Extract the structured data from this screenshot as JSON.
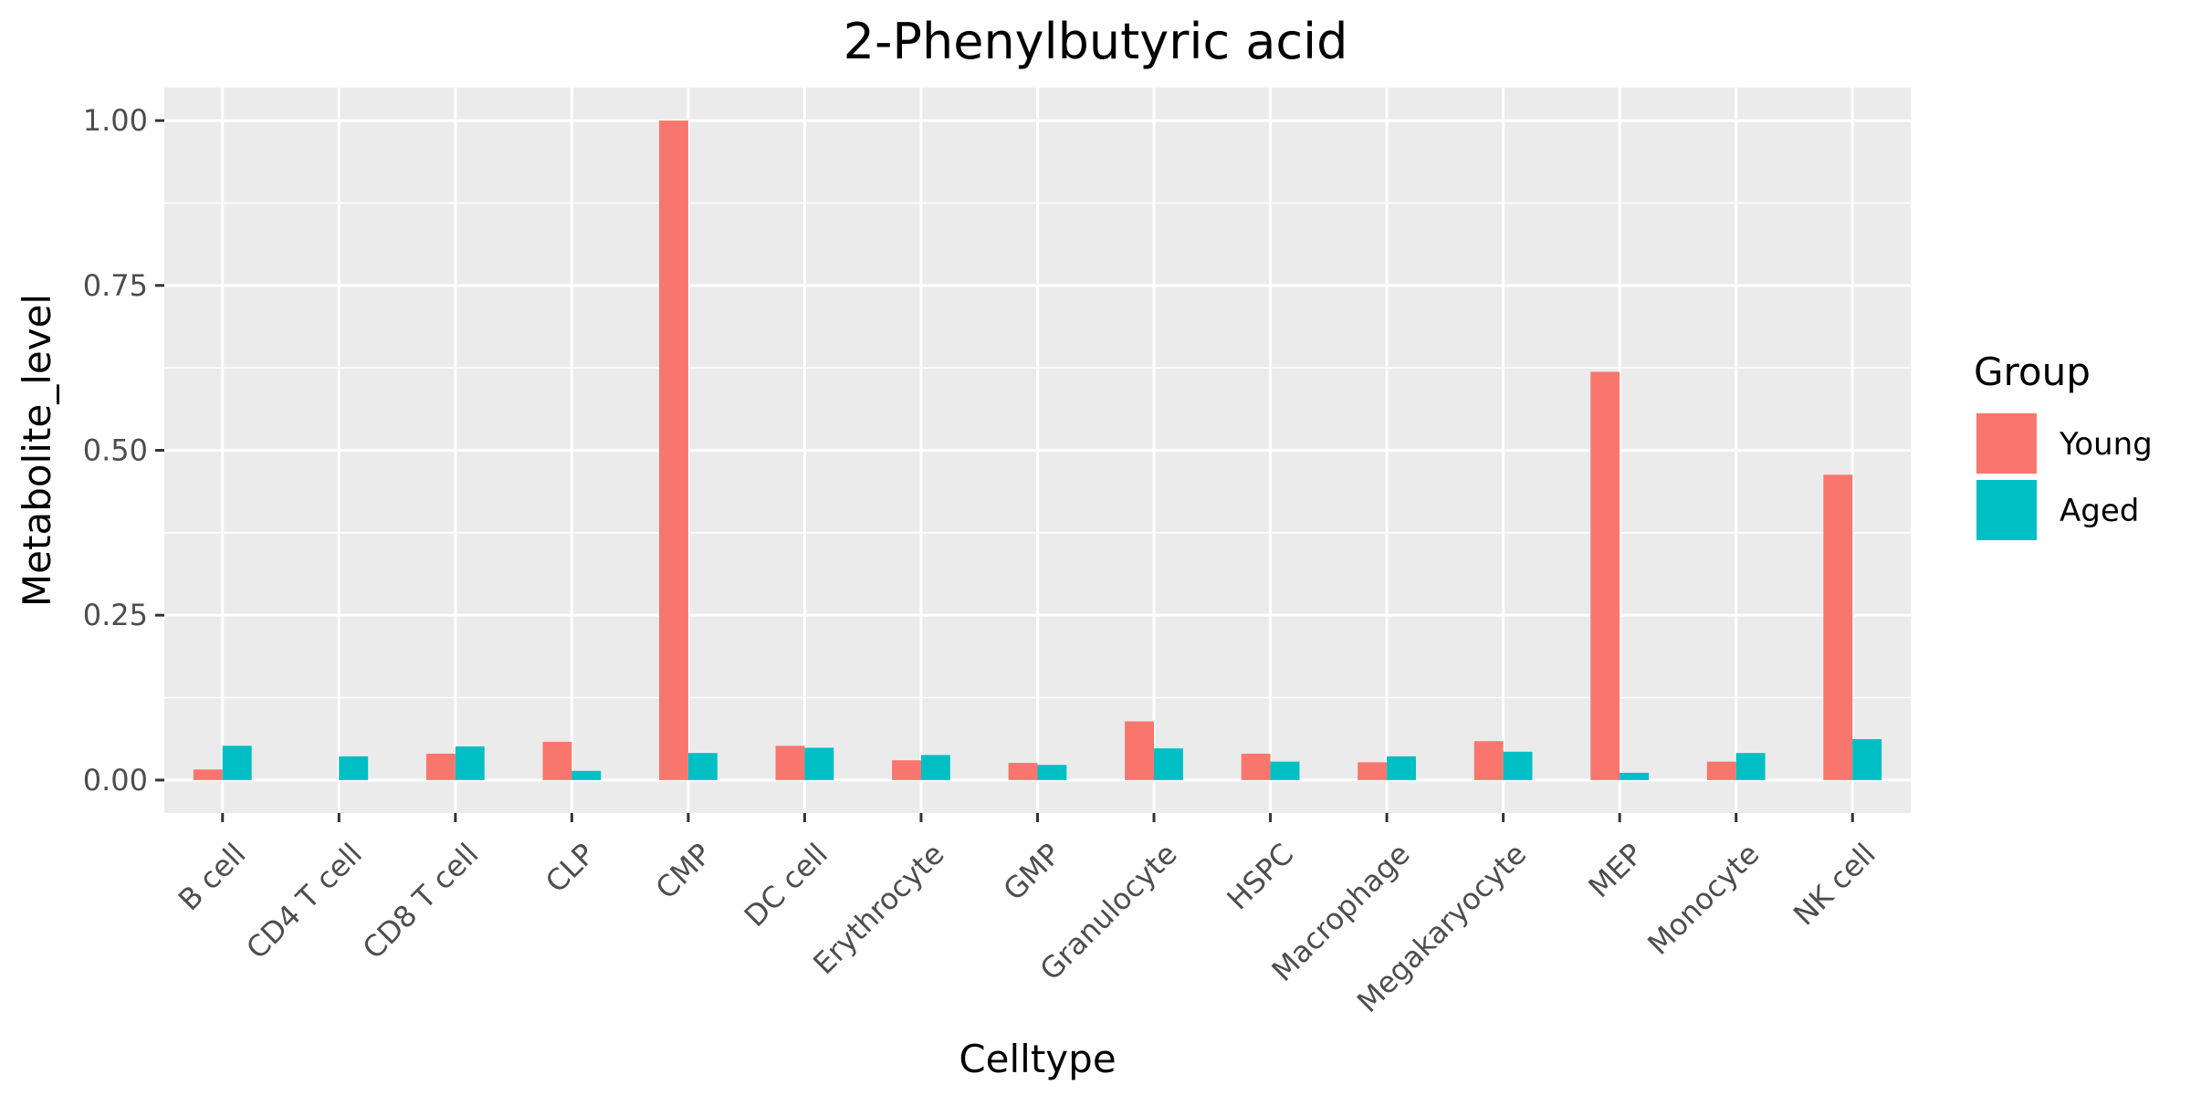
{
  "chart_data": {
    "type": "bar",
    "title": "2-Phenylbutyric acid",
    "xlabel": "Celltype",
    "ylabel": "Metabolite_level",
    "categories": [
      "B cell",
      "CD4 T cell",
      "CD8 T cell",
      "CLP",
      "CMP",
      "DC cell",
      "Erythrocyte",
      "GMP",
      "Granulocyte",
      "HSPC",
      "Macrophage",
      "Megakaryocyte",
      "MEP",
      "Monocyte",
      "NK cell"
    ],
    "series": [
      {
        "name": "Young",
        "color": "#F8766D",
        "values": [
          0.016,
          0,
          0.04,
          0.058,
          1.0,
          0.052,
          0.03,
          0.026,
          0.089,
          0.04,
          0.027,
          0.059,
          0.619,
          0.028,
          0.463
        ]
      },
      {
        "name": "Aged",
        "color": "#00BFC4",
        "values": [
          0.052,
          0.036,
          0.051,
          0.014,
          0.041,
          0.049,
          0.038,
          0.023,
          0.048,
          0.028,
          0.036,
          0.043,
          0.011,
          0.041,
          0.062
        ]
      }
    ],
    "y_ticks": [
      "0.00",
      "0.25",
      "0.50",
      "0.75",
      "1.00"
    ],
    "y_tick_values": [
      0,
      0.25,
      0.5,
      0.75,
      1.0
    ],
    "ylim": [
      -0.05,
      1.05
    ],
    "grid": true,
    "legend": {
      "title": "Group",
      "position": "right"
    },
    "panel_color": "#EBEBEB"
  }
}
